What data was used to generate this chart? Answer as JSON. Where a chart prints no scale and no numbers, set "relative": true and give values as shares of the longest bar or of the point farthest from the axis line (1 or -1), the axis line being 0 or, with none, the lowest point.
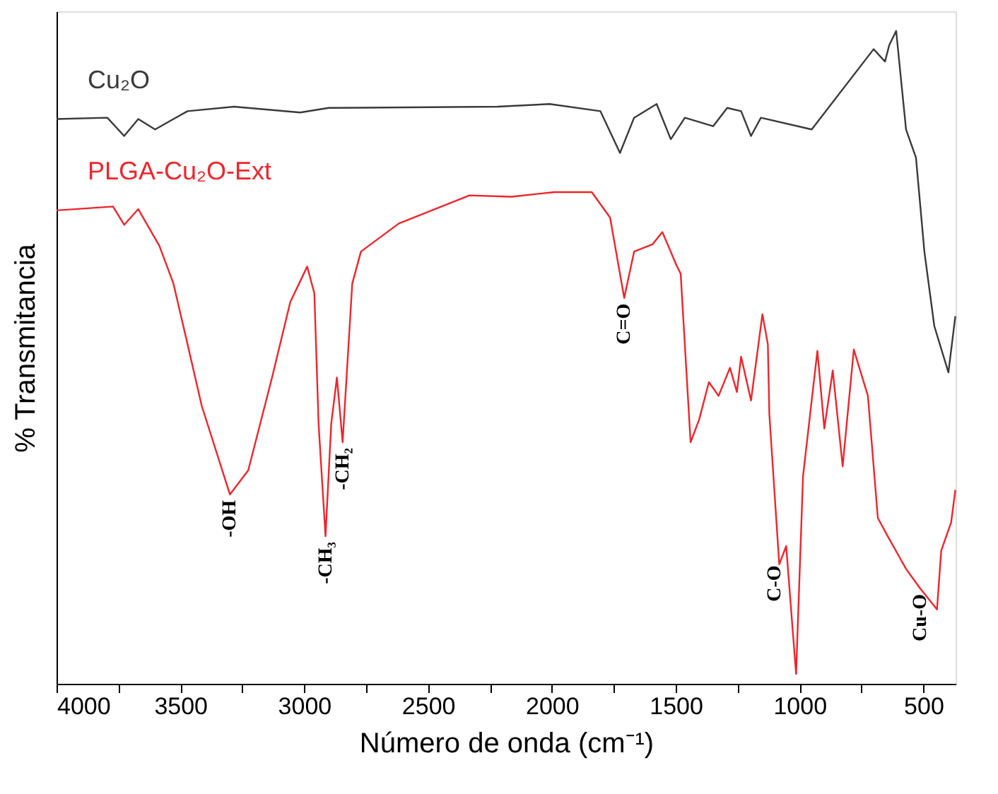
{
  "chart_data": {
    "type": "line",
    "relative": true,
    "xlabel": "Número de onda (cm⁻¹)",
    "ylabel": "% Transmitancia",
    "xlim": [
      4000,
      370
    ],
    "xticks": [
      4000,
      {
        "value": 3750,
        "label": null
      },
      3500,
      {
        "value": 3250,
        "label": null
      },
      3000,
      {
        "value": 2750,
        "label": null
      },
      2500,
      {
        "value": 2250,
        "label": null
      },
      2000,
      {
        "value": 1750,
        "label": null
      },
      1500,
      {
        "value": 1250,
        "label": null
      },
      1000,
      {
        "value": 750,
        "label": null
      },
      500
    ],
    "grid": false,
    "legend": false,
    "marker": "none",
    "line_style": "solid",
    "tick_labels": "x",
    "series": [
      {
        "name": "Cu₂O",
        "color": "#3a3a3a",
        "x": [
          4000,
          3795,
          3727,
          3670,
          3602,
          3528,
          3471,
          3283,
          3016,
          2902,
          2220,
          2009,
          1804,
          1725,
          1668,
          1577,
          1520,
          1463,
          1349,
          1292,
          1236,
          1196,
          1156,
          951,
          701,
          655,
          638,
          610,
          570,
          530,
          496,
          456,
          399,
          371
        ],
        "values": [
          0.865,
          0.867,
          0.839,
          0.865,
          0.849,
          0.865,
          0.877,
          0.884,
          0.875,
          0.882,
          0.884,
          0.888,
          0.877,
          0.813,
          0.867,
          0.888,
          0.834,
          0.867,
          0.854,
          0.882,
          0.877,
          0.839,
          0.867,
          0.849,
          0.972,
          0.953,
          0.978,
          1,
          0.849,
          0.806,
          0.662,
          0.548,
          0.477,
          0.563
        ]
      },
      {
        "name": "PLGA-Cu₂O-Ext",
        "color": "#f0242a",
        "x": [
          4000,
          3772,
          3727,
          3670,
          3585,
          3528,
          3471,
          3414,
          3300,
          3226,
          3130,
          3056,
          2988,
          2959,
          2942,
          2914,
          2891,
          2868,
          2845,
          2806,
          2771,
          2618,
          2333,
          2163,
          1992,
          1839,
          1765,
          1708,
          1668,
          1594,
          1554,
          1497,
          1480,
          1440,
          1406,
          1366,
          1327,
          1281,
          1253,
          1236,
          1196,
          1150,
          1128,
          1122,
          1082,
          1054,
          1014,
          986,
          928,
          900,
          866,
          826,
          781,
          724,
          684,
          644,
          570,
          513,
          445,
          428,
          388,
          371
        ],
        "values": [
          0.725,
          0.731,
          0.703,
          0.727,
          0.671,
          0.613,
          0.52,
          0.426,
          0.29,
          0.327,
          0.469,
          0.585,
          0.639,
          0.598,
          0.398,
          0.226,
          0.398,
          0.469,
          0.37,
          0.613,
          0.662,
          0.705,
          0.748,
          0.746,
          0.753,
          0.753,
          0.714,
          0.591,
          0.662,
          0.673,
          0.692,
          0.641,
          0.628,
          0.37,
          0.404,
          0.462,
          0.441,
          0.484,
          0.447,
          0.501,
          0.434,
          0.566,
          0.52,
          0.413,
          0.183,
          0.211,
          0.015,
          0.318,
          0.51,
          0.391,
          0.48,
          0.333,
          0.512,
          0.441,
          0.254,
          0.226,
          0.176,
          0.146,
          0.114,
          0.204,
          0.247,
          0.297
        ]
      }
    ],
    "annotations": [
      {
        "text": "-OH",
        "x": 3300,
        "y": 0.29
      },
      {
        "text": "-CH₃",
        "x": 2914,
        "y": 0.226
      },
      {
        "text": "-CH₂",
        "x": 2845,
        "y": 0.37
      },
      {
        "text": "C=O",
        "x": 1708,
        "y": 0.591
      },
      {
        "text": "C-O",
        "x": 1100,
        "y": 0.19
      },
      {
        "text": "Cu-O",
        "x": 513,
        "y": 0.146
      }
    ]
  }
}
